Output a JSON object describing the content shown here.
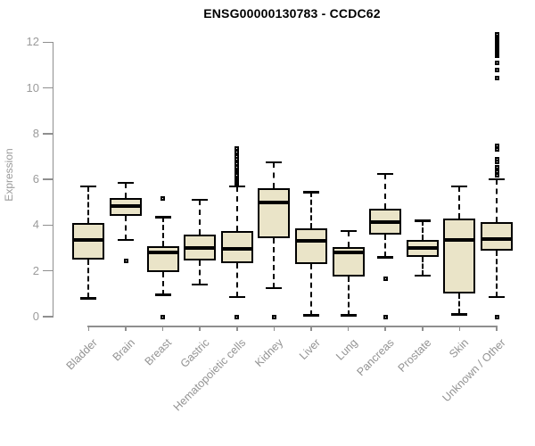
{
  "title": "ENSG00000130783 - CCDC62",
  "chart_data": {
    "type": "boxplot",
    "title": "ENSG00000130783 - CCDC62",
    "xlabel": "",
    "ylabel": "Expression",
    "ylim": [
      0,
      12
    ],
    "yticks": [
      0,
      2,
      4,
      6,
      8,
      10,
      12
    ],
    "grid": false,
    "legend": "none",
    "box_fill_color": "#eae4c8",
    "box_border_color": "#000000",
    "axis_color": "#8f8f8f",
    "text_color": "#9b9b9b",
    "categories": [
      "Bladder",
      "Brain",
      "Breast",
      "Gastric",
      "Hematopoietic cells",
      "Kidney",
      "Liver",
      "Lung",
      "Pancreas",
      "Prostate",
      "Skin",
      "Unknown / Other"
    ],
    "series": [
      {
        "category": "Bladder",
        "whisker_low": 0.8,
        "q1": 2.5,
        "median": 3.35,
        "q3": 4.1,
        "whisker_high": 5.7,
        "outliers": []
      },
      {
        "category": "Brain",
        "whisker_low": 3.35,
        "q1": 4.4,
        "median": 4.85,
        "q3": 5.2,
        "whisker_high": 5.85,
        "outliers": [
          2.45
        ]
      },
      {
        "category": "Breast",
        "whisker_low": 0.95,
        "q1": 1.95,
        "median": 2.8,
        "q3": 3.1,
        "whisker_high": 4.35,
        "outliers": [
          5.15,
          0.0
        ]
      },
      {
        "category": "Gastric",
        "whisker_low": 1.4,
        "q1": 2.45,
        "median": 3.0,
        "q3": 3.6,
        "whisker_high": 5.1,
        "outliers": []
      },
      {
        "category": "Hematopoietic cells",
        "whisker_low": 0.85,
        "q1": 2.35,
        "median": 2.95,
        "q3": 3.75,
        "whisker_high": 5.7,
        "outliers": [
          0.0,
          5.8,
          5.85,
          5.9,
          5.95,
          6.0,
          6.05,
          6.1,
          6.15,
          6.2,
          6.3,
          6.35,
          6.4,
          6.5,
          6.55,
          6.65,
          6.7,
          6.8,
          6.9,
          7.0,
          7.1,
          7.2,
          7.3,
          7.35
        ]
      },
      {
        "category": "Kidney",
        "whisker_low": 1.25,
        "q1": 3.45,
        "median": 5.0,
        "q3": 5.6,
        "whisker_high": 6.75,
        "outliers": [
          0.0
        ]
      },
      {
        "category": "Liver",
        "whisker_low": 0.05,
        "q1": 2.3,
        "median": 3.3,
        "q3": 3.85,
        "whisker_high": 5.45,
        "outliers": []
      },
      {
        "category": "Lung",
        "whisker_low": 0.05,
        "q1": 1.75,
        "median": 2.8,
        "q3": 3.05,
        "whisker_high": 3.75,
        "outliers": []
      },
      {
        "category": "Pancreas",
        "whisker_low": 2.6,
        "q1": 3.6,
        "median": 4.15,
        "q3": 4.7,
        "whisker_high": 6.25,
        "outliers": [
          1.65,
          0.0
        ]
      },
      {
        "category": "Prostate",
        "whisker_low": 1.8,
        "q1": 2.6,
        "median": 3.0,
        "q3": 3.35,
        "whisker_high": 4.2,
        "outliers": []
      },
      {
        "category": "Skin",
        "whisker_low": 0.1,
        "q1": 1.0,
        "median": 3.35,
        "q3": 4.3,
        "whisker_high": 5.7,
        "outliers": []
      },
      {
        "category": "Unknown / Other",
        "whisker_low": 0.85,
        "q1": 2.9,
        "median": 3.4,
        "q3": 4.15,
        "whisker_high": 6.0,
        "outliers": [
          0.0,
          6.2,
          6.35,
          6.55,
          6.75,
          6.9,
          7.3,
          7.45,
          10.45,
          10.8,
          11.1,
          11.4,
          11.45,
          11.5,
          11.55,
          11.6,
          11.65,
          11.7,
          11.75,
          11.8,
          11.85,
          11.9,
          11.95,
          12.0,
          12.05,
          12.1,
          12.15,
          12.2,
          12.25,
          12.3,
          12.35
        ]
      }
    ]
  }
}
